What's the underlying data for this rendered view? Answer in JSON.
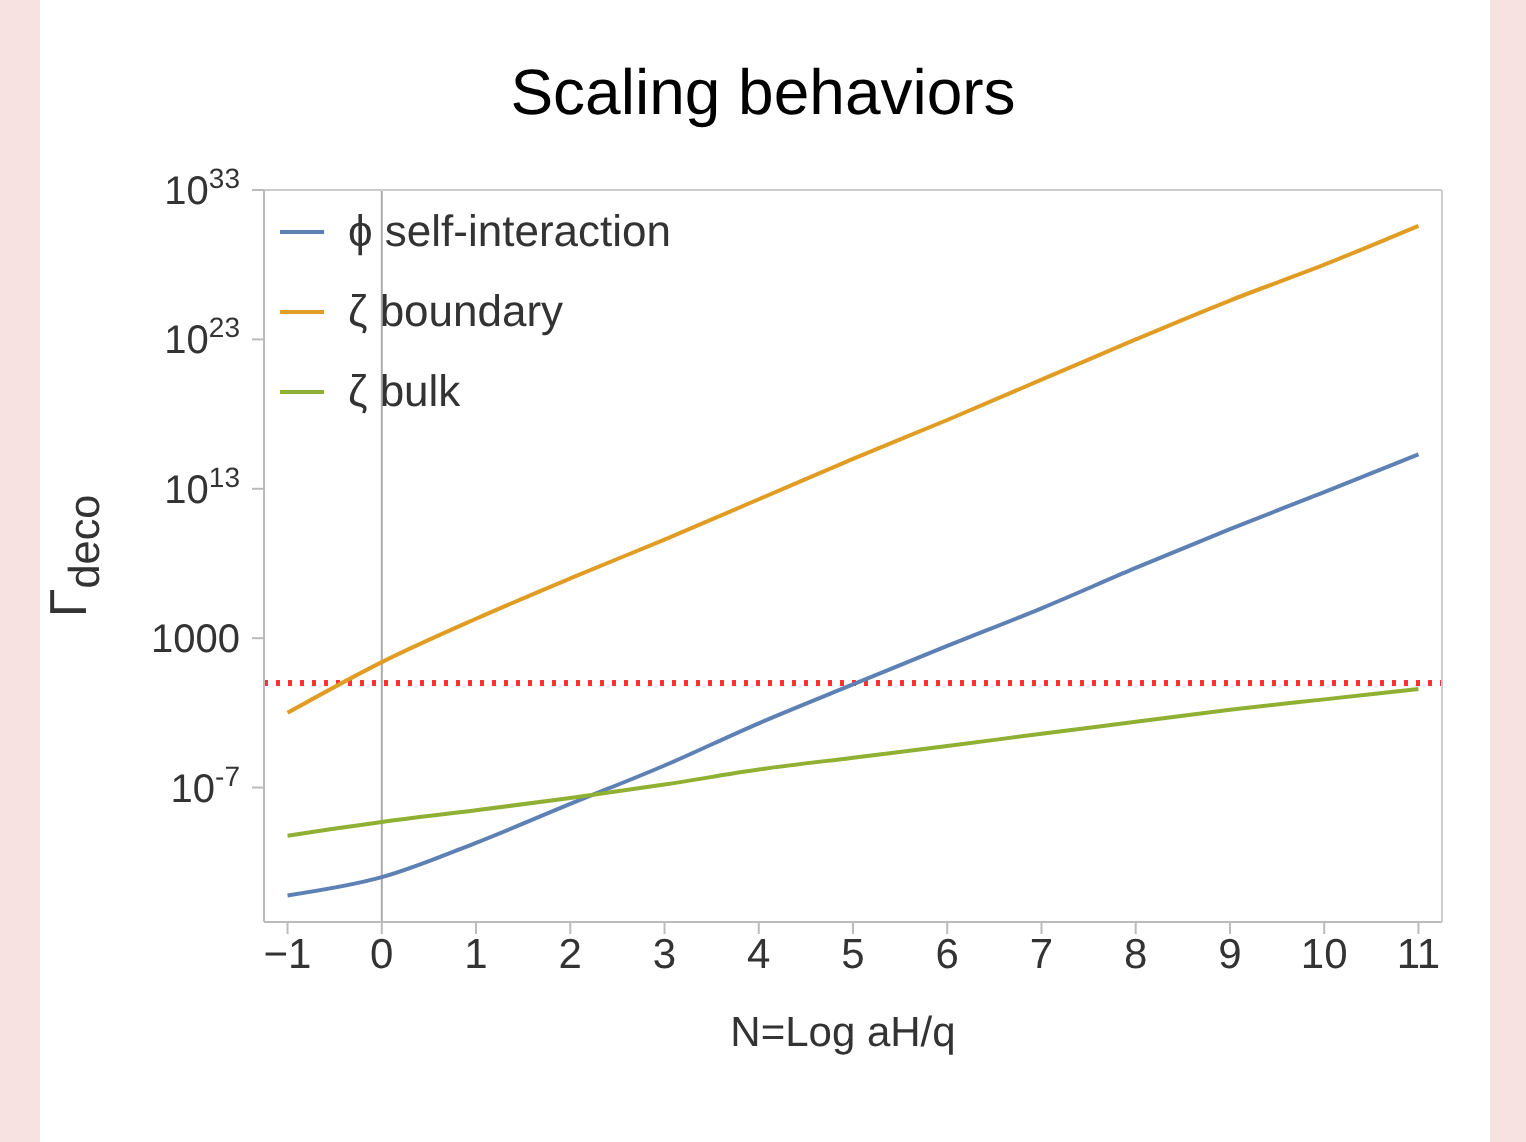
{
  "chart_data": {
    "type": "line",
    "title": "Scaling behaviors",
    "xlabel": "N=Log aH/q",
    "ylabel": "Γ$_{deco}$",
    "x": [
      -1,
      0,
      1,
      2,
      3,
      4,
      5,
      6,
      7,
      8,
      9,
      10,
      11
    ],
    "series": [
      {
        "name": "ϕ self-interaction",
        "color": "#5e81b5",
        "values": [
          6e-15,
          1e-13,
          2e-11,
          8e-09,
          3e-06,
          0.002,
          0.8,
          300,
          100000.0,
          50000000.0,
          20000000000.0,
          6000000000000.0,
          2000000000000000.0
        ]
      },
      {
        "name": "ζ boundary",
        "color": "#e19c24",
        "values": [
          0.01,
          25,
          20000.0,
          10000000.0,
          4000000000.0,
          2000000000000.0,
          1000000000000000.0,
          4e+17,
          2e+20,
          1e+23,
          4e+25,
          1e+28,
          4e+30
        ]
      },
      {
        "name": "ζ bulk",
        "color": "#8fb032",
        "values": [
          6e-11,
          5e-10,
          3e-09,
          2e-08,
          1.6e-07,
          1.6e-06,
          1e-05,
          6e-05,
          0.0004,
          0.0025,
          0.016,
          0.08,
          0.4
        ]
      }
    ],
    "xlim": [
      -1.25,
      11.25
    ],
    "xticks": [
      -1,
      0,
      1,
      2,
      3,
      4,
      5,
      6,
      7,
      8,
      9,
      10,
      11
    ],
    "ylim": [
      1e-16,
      1e+33
    ],
    "yticks": [
      {
        "value": 1e-07,
        "label": "10$^{-7}$"
      },
      {
        "value": 1000,
        "label": "1000"
      },
      {
        "value": 10000000000000.0,
        "label": "10$^{13}$"
      },
      {
        "value": 1e+23,
        "label": "10$^{23}$"
      },
      {
        "value": 1e+33,
        "label": "10$^{33}$"
      }
    ],
    "log": "y",
    "legend": "top left",
    "marker": "none",
    "line_style": "solid",
    "ref_lines": [
      {
        "axis": "x",
        "value": 0,
        "color": "#aaaaaa",
        "line_style": "solid"
      },
      {
        "axis": "y",
        "value": 1,
        "color": "#ff3333",
        "line_style": "dotted"
      }
    ]
  }
}
